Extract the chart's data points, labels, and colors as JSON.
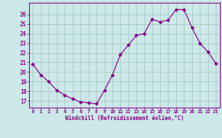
{
  "x": [
    0,
    1,
    2,
    3,
    4,
    5,
    6,
    7,
    8,
    9,
    10,
    11,
    12,
    13,
    14,
    15,
    16,
    17,
    18,
    19,
    20,
    21,
    22,
    23
  ],
  "y": [
    20.8,
    19.7,
    19.0,
    18.1,
    17.6,
    17.2,
    16.9,
    16.8,
    16.7,
    18.1,
    19.7,
    21.8,
    22.8,
    23.8,
    24.0,
    25.5,
    25.2,
    25.4,
    26.5,
    26.5,
    24.6,
    23.0,
    22.1,
    20.9
  ],
  "xlabel": "Windchill (Refroidissement éolien,°C)",
  "xtick_labels": [
    "0",
    "1",
    "2",
    "3",
    "4",
    "5",
    "6",
    "7",
    "8",
    "9",
    "10",
    "11",
    "12",
    "13",
    "14",
    "15",
    "16",
    "17",
    "18",
    "19",
    "20",
    "21",
    "22",
    "23"
  ],
  "ytick_labels": [
    "17",
    "18",
    "19",
    "20",
    "21",
    "22",
    "23",
    "24",
    "25",
    "26"
  ],
  "yticks": [
    17,
    18,
    19,
    20,
    21,
    22,
    23,
    24,
    25,
    26
  ],
  "ylim": [
    16.3,
    27.2
  ],
  "xlim": [
    -0.5,
    23.5
  ],
  "line_color": "#880088",
  "marker": "D",
  "marker_size": 2.5,
  "bg_color": "#cce8e8",
  "grid_color": "#aacccc",
  "tick_color": "#880088",
  "label_color": "#880088",
  "spine_color": "#880088"
}
